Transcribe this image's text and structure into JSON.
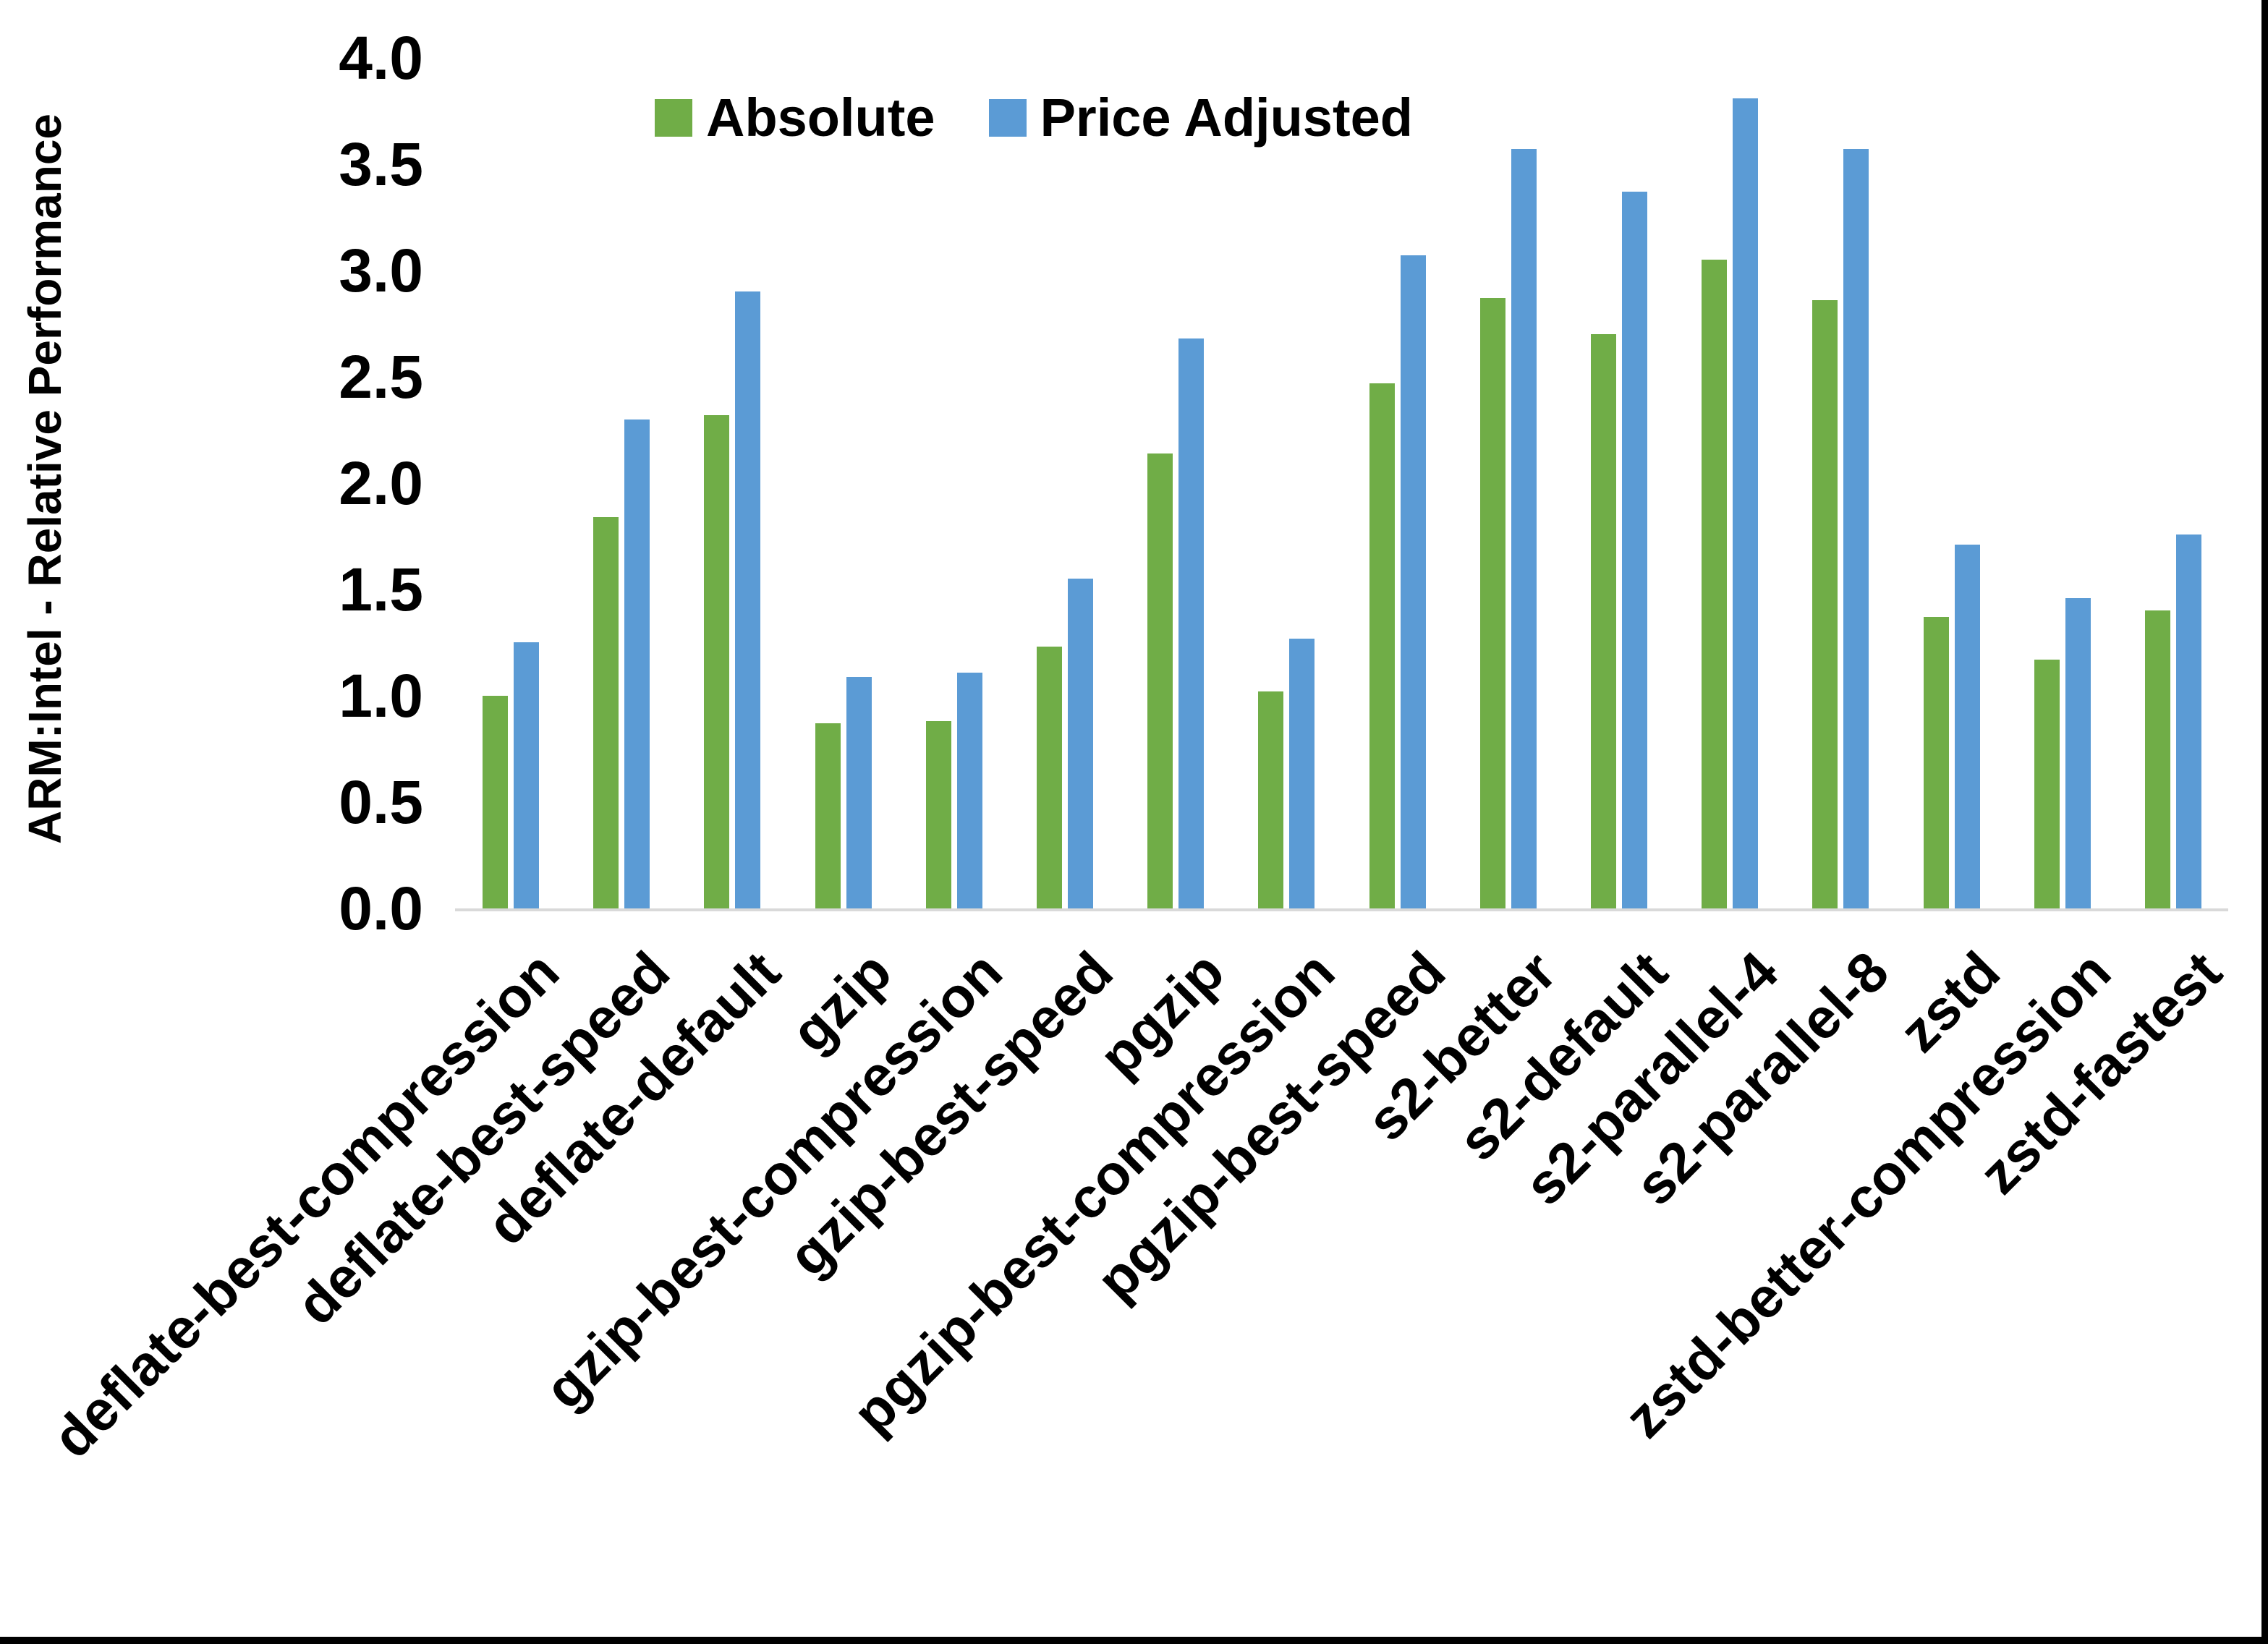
{
  "chart_data": {
    "type": "bar",
    "title": "",
    "xlabel": "",
    "ylabel": "ARM:Intel - Relative Performance",
    "ylim": [
      0.0,
      4.0
    ],
    "ytick_labels": [
      "0.0",
      "0.5",
      "1.0",
      "1.5",
      "2.0",
      "2.5",
      "3.0",
      "3.5",
      "4.0"
    ],
    "grid": false,
    "legend_position": "top-center",
    "background_color": "#ffffff",
    "axis_line_color": "#d9d9d9",
    "text_color": "#000000",
    "categories": [
      "deflate-best-compression",
      "deflate-best-speed",
      "deflate-default",
      "gzip",
      "gzip-best-compression",
      "gzip-best-speed",
      "pgzip",
      "pgzip-best-compression",
      "pgzip-best-speed",
      "s2-better",
      "s2-default",
      "s2-parallel-4",
      "s2-parallel-8",
      "zstd",
      "zstd-better-compression",
      "zstd-fastest"
    ],
    "series": [
      {
        "name": "Absolute",
        "color": "#70AD47",
        "values": [
          1.0,
          1.84,
          2.32,
          0.87,
          0.88,
          1.23,
          2.14,
          1.02,
          2.47,
          2.87,
          2.7,
          3.05,
          2.86,
          1.37,
          1.17,
          1.4
        ]
      },
      {
        "name": "Price Adjusted",
        "color": "#5B9BD5",
        "values": [
          1.25,
          2.3,
          2.9,
          1.09,
          1.11,
          1.55,
          2.68,
          1.27,
          3.07,
          3.57,
          3.37,
          3.81,
          3.57,
          1.71,
          1.46,
          1.76
        ]
      }
    ]
  }
}
